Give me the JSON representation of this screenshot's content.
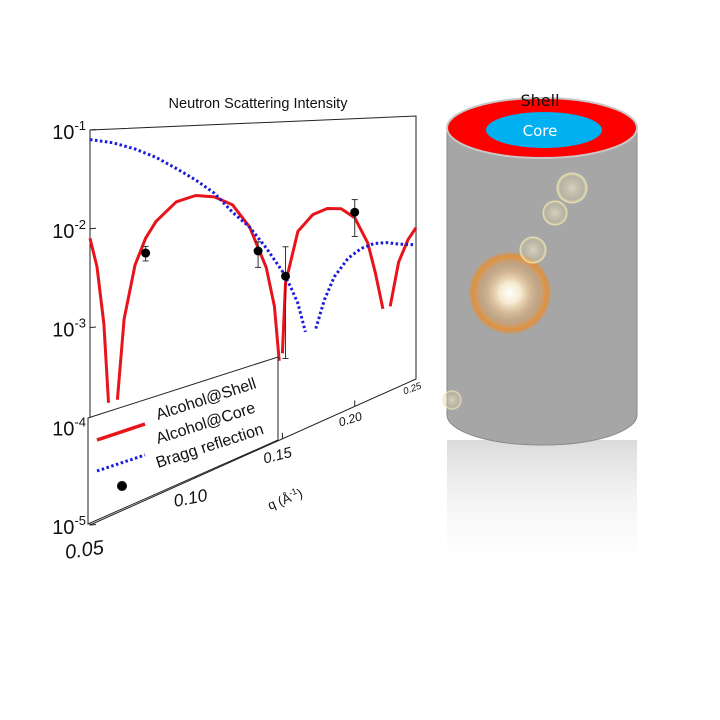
{
  "chart_data": {
    "type": "line",
    "title": "Neutron Scattering Intensity",
    "xlabel": "q (Å",
    "xlabel_sup": "-1",
    "xlabel_end": ")",
    "ylabel": "",
    "xlim": [
      0.05,
      0.25
    ],
    "ylim": [
      1e-05,
      0.1
    ],
    "yscale": "log",
    "x_ticks": [
      "0.05",
      "0.10",
      "0.15",
      "0.20",
      "0.25"
    ],
    "x_tick_values": [
      0.05,
      0.1,
      0.15,
      0.2,
      0.25
    ],
    "y_ticks": [
      {
        "base": "10",
        "exp": "-1",
        "value": 0.1
      },
      {
        "base": "10",
        "exp": "-2",
        "value": 0.01
      },
      {
        "base": "10",
        "exp": "-3",
        "value": 0.001
      },
      {
        "base": "10",
        "exp": "-4",
        "value": 0.0001
      },
      {
        "base": "10",
        "exp": "-5",
        "value": 1e-05
      }
    ],
    "legend_placement": "bottom-left",
    "series": [
      {
        "name": "Alcohol@Shell",
        "style": "solid",
        "color": "#e8141c",
        "segments": [
          [
            [
              0.05,
              0.008
            ],
            [
              0.053,
              0.004
            ],
            [
              0.056,
              0.001
            ],
            [
              0.058,
              0.00015
            ]
          ],
          [
            [
              0.062,
              0.00015
            ],
            [
              0.065,
              0.001
            ],
            [
              0.07,
              0.0035
            ],
            [
              0.075,
              0.0065
            ],
            [
              0.08,
              0.0095
            ],
            [
              0.09,
              0.0145
            ],
            [
              0.1,
              0.016
            ],
            [
              0.11,
              0.0145
            ],
            [
              0.12,
              0.011
            ],
            [
              0.13,
              0.0055
            ],
            [
              0.14,
              0.0016
            ],
            [
              0.145,
              0.0005
            ],
            [
              0.148,
              0.0001
            ]
          ],
          [
            [
              0.15,
              0.00012
            ],
            [
              0.152,
              0.0009
            ],
            [
              0.16,
              0.0038
            ],
            [
              0.17,
              0.0058
            ],
            [
              0.18,
              0.0065
            ],
            [
              0.19,
              0.006
            ],
            [
              0.2,
              0.0042
            ],
            [
              0.21,
              0.0017
            ],
            [
              0.216,
              0.0006
            ],
            [
              0.222,
              0.00017
            ]
          ],
          [
            [
              0.228,
              0.00017
            ],
            [
              0.235,
              0.0007
            ],
            [
              0.243,
              0.0014
            ],
            [
              0.25,
              0.002
            ]
          ]
        ]
      },
      {
        "name": "Alcohol@Core",
        "style": "dotted",
        "color": "#1a1adc",
        "segments": [
          [
            [
              0.05,
              0.08
            ],
            [
              0.06,
              0.072
            ],
            [
              0.07,
              0.06
            ],
            [
              0.08,
              0.047
            ],
            [
              0.09,
              0.034
            ],
            [
              0.1,
              0.024
            ],
            [
              0.11,
              0.016
            ],
            [
              0.12,
              0.009
            ],
            [
              0.13,
              0.0055
            ],
            [
              0.14,
              0.0028
            ],
            [
              0.15,
              0.0013
            ],
            [
              0.155,
              0.0008
            ],
            [
              0.16,
              0.00045
            ],
            [
              0.165,
              0.00018
            ]
          ],
          [
            [
              0.172,
              0.00018
            ],
            [
              0.178,
              0.0004
            ],
            [
              0.185,
              0.00075
            ],
            [
              0.195,
              0.0012
            ],
            [
              0.205,
              0.0015
            ],
            [
              0.215,
              0.0016
            ],
            [
              0.225,
              0.0015
            ],
            [
              0.235,
              0.0013
            ],
            [
              0.25,
              0.0011
            ]
          ]
        ]
      },
      {
        "name": "Bragg reflection",
        "style": "points",
        "color": "#000000",
        "points": [
          {
            "x": 0.075,
            "y": 0.0045,
            "ylo": 0.0037,
            "yhi": 0.0053
          },
          {
            "x": 0.135,
            "y": 0.0027,
            "ylo": 0.0017,
            "yhi": 0.0035
          },
          {
            "x": 0.152,
            "y": 0.0011,
            "ylo": 0.0001,
            "yhi": 0.0026
          },
          {
            "x": 0.2,
            "y": 0.005,
            "ylo": 0.0023,
            "yhi": 0.0075
          }
        ]
      }
    ]
  },
  "illustration": {
    "shell_label": "Shell",
    "core_label": "Core",
    "shell_color": "#ff0000",
    "core_color": "#00b0f0",
    "cylinder_color": "#a6a6a6"
  }
}
